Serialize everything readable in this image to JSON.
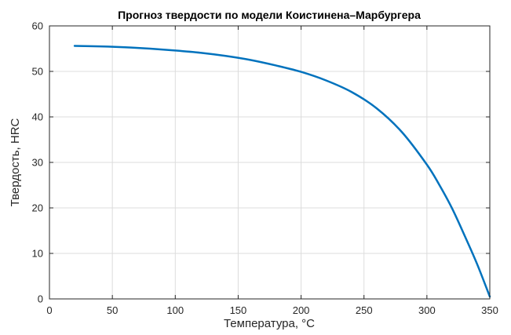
{
  "chart_data": {
    "type": "line",
    "title": "Прогноз твердости по модели Коистинена–Марбургера",
    "xlabel": "Температура, °C",
    "ylabel": "Твердость, HRC",
    "xlim": [
      0,
      350
    ],
    "ylim": [
      0,
      60
    ],
    "xticks": [
      0,
      50,
      100,
      150,
      200,
      250,
      300,
      350
    ],
    "yticks": [
      0,
      10,
      20,
      30,
      40,
      50,
      60
    ],
    "grid": true,
    "line_color": "#0072bd",
    "series": [
      {
        "x": [
          20,
          40,
          60,
          80,
          100,
          120,
          140,
          160,
          180,
          200,
          220,
          240,
          260,
          280,
          300,
          310,
          320,
          330,
          340,
          350
        ],
        "y": [
          55.6,
          55.5,
          55.3,
          55.0,
          54.6,
          54.1,
          53.4,
          52.5,
          51.3,
          49.9,
          48.0,
          45.5,
          41.9,
          36.7,
          29.5,
          25.0,
          19.9,
          13.9,
          7.6,
          0.5
        ]
      }
    ]
  }
}
